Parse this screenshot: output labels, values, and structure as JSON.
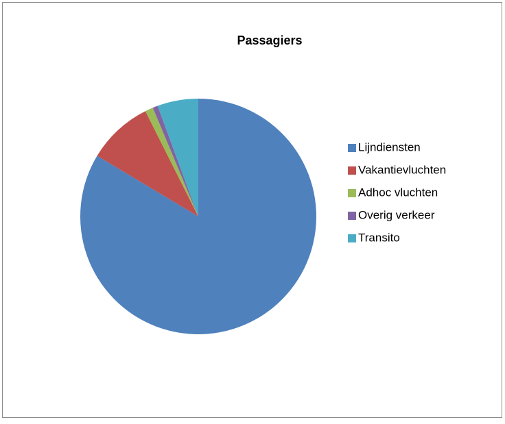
{
  "chart_data": {
    "type": "pie",
    "title": "Passagiers",
    "categories": [
      "Lijndiensten",
      "Vakantievluchten",
      "Adhoc vluchten",
      "Overig verkeer",
      "Transito"
    ],
    "values": [
      83.6,
      9.0,
      1.1,
      0.7,
      5.6
    ],
    "colors": [
      "#4f81bd",
      "#c0504d",
      "#9bbb59",
      "#8064a2",
      "#4bacc6"
    ],
    "legend": "right"
  }
}
